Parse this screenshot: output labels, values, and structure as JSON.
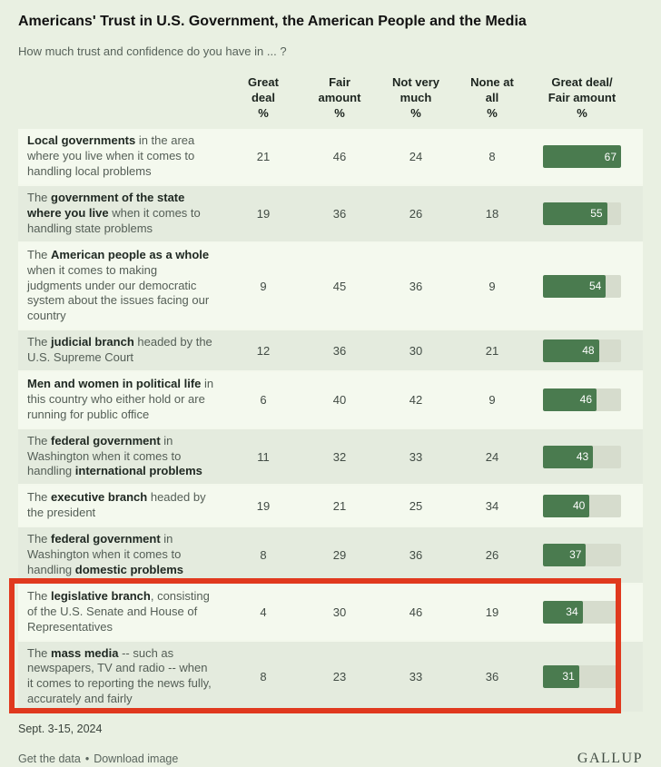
{
  "page": {
    "title": "Americans' Trust in U.S. Government, the American People and the Media",
    "subtitle": "How much trust and confidence do you have in ... ?"
  },
  "footer": {
    "date": "Sept. 3-15, 2024",
    "link_get_data": "Get the data",
    "link_separator": "•",
    "link_download": "Download image",
    "brand": "GALLUP"
  },
  "colors": {
    "page_bg": "#e9f0e2",
    "row_light": "#f4f9ee",
    "row_dark": "#e4ebde",
    "bar_green": "#4a7b4f",
    "bar_track": "#d6dccd",
    "highlight_red": "#e0391e"
  },
  "chart_data": {
    "type": "table",
    "title": "Americans' Trust in U.S. Government, the American People and the Media",
    "subtitle": "How much trust and confidence do you have in ... ?",
    "columns": [
      "Great\ndeal\n%",
      "Fair\namount\n%",
      "Not very\nmuch\n%",
      "None at\nall\n%",
      "Great deal/\nFair amount\n%"
    ],
    "column_keys": [
      "great_deal",
      "fair_amount",
      "not_very_much",
      "none_at_all",
      "great_deal_fair_amount"
    ],
    "bar_axis_max": 67,
    "legend_note": "last column rendered as green bar with white value label",
    "highlight_note": "red rectangle drawn around the legislative branch and mass media rows",
    "source_date": "Sept. 3-15, 2024",
    "rows": [
      {
        "label_segments": [
          [
            "Local governments",
            1
          ],
          [
            " in the area where you live when it comes to handling local problems",
            0
          ]
        ],
        "values": [
          21,
          46,
          24,
          8
        ],
        "bar": 67,
        "highlighted": false
      },
      {
        "label_segments": [
          [
            "The ",
            0
          ],
          [
            "government of the state where you live",
            1
          ],
          [
            " when it comes to handling state problems",
            0
          ]
        ],
        "values": [
          19,
          36,
          26,
          18
        ],
        "bar": 55,
        "highlighted": false
      },
      {
        "label_segments": [
          [
            "The ",
            0
          ],
          [
            "American people as a whole",
            1
          ],
          [
            " when it comes to making judgments under our democratic system about the issues facing our country",
            0
          ]
        ],
        "values": [
          9,
          45,
          36,
          9
        ],
        "bar": 54,
        "highlighted": false
      },
      {
        "label_segments": [
          [
            "The ",
            0
          ],
          [
            "judicial branch",
            1
          ],
          [
            " headed by the U.S. Supreme Court",
            0
          ]
        ],
        "values": [
          12,
          36,
          30,
          21
        ],
        "bar": 48,
        "highlighted": false
      },
      {
        "label_segments": [
          [
            "Men and women in political life",
            1
          ],
          [
            " in this country who either hold or are running for public office",
            0
          ]
        ],
        "values": [
          6,
          40,
          42,
          9
        ],
        "bar": 46,
        "highlighted": false
      },
      {
        "label_segments": [
          [
            "The ",
            0
          ],
          [
            "federal government",
            1
          ],
          [
            " in Washington when it comes to handling ",
            0
          ],
          [
            "international problems",
            1
          ]
        ],
        "values": [
          11,
          32,
          33,
          24
        ],
        "bar": 43,
        "highlighted": false
      },
      {
        "label_segments": [
          [
            "The ",
            0
          ],
          [
            "executive branch",
            1
          ],
          [
            " headed by the president",
            0
          ]
        ],
        "values": [
          19,
          21,
          25,
          34
        ],
        "bar": 40,
        "highlighted": false
      },
      {
        "label_segments": [
          [
            "The ",
            0
          ],
          [
            "federal government",
            1
          ],
          [
            " in Washington when it comes to handling ",
            0
          ],
          [
            "domestic problems",
            1
          ]
        ],
        "values": [
          8,
          29,
          36,
          26
        ],
        "bar": 37,
        "highlighted": false
      },
      {
        "label_segments": [
          [
            "The ",
            0
          ],
          [
            "legislative branch",
            1
          ],
          [
            ", consisting of the U.S. Senate and House of Representatives",
            0
          ]
        ],
        "values": [
          4,
          30,
          46,
          19
        ],
        "bar": 34,
        "highlighted": true
      },
      {
        "label_segments": [
          [
            "The ",
            0
          ],
          [
            "mass media",
            1
          ],
          [
            " -- such as newspapers, TV and radio -- when it comes to reporting the news fully, accurately and fairly",
            0
          ]
        ],
        "values": [
          8,
          23,
          33,
          36
        ],
        "bar": 31,
        "highlighted": true
      }
    ]
  }
}
